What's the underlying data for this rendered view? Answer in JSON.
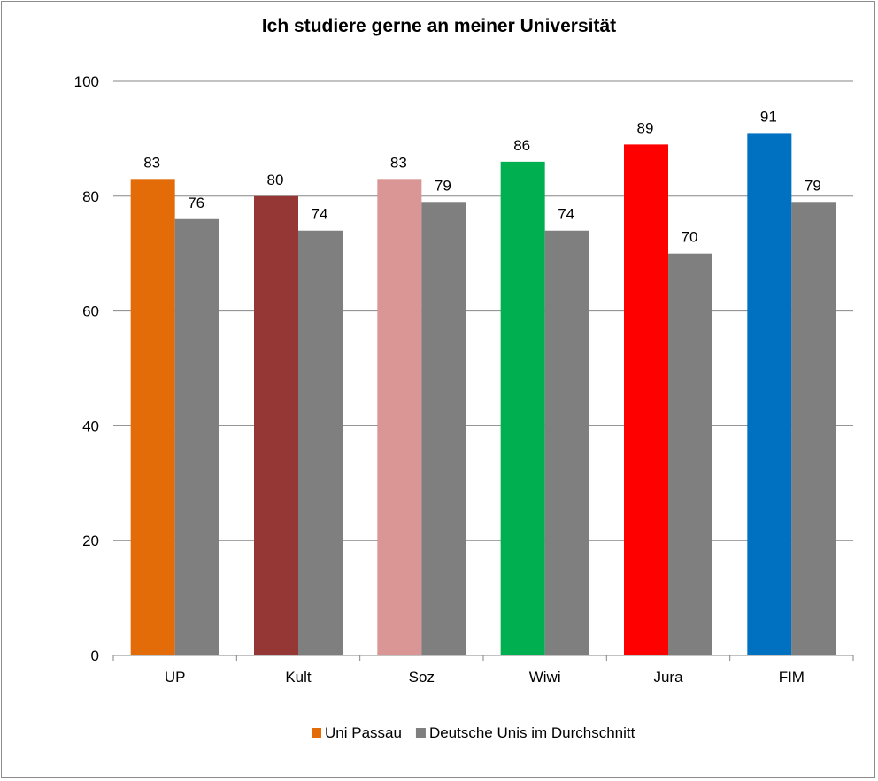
{
  "chart_data": {
    "type": "bar",
    "title": "Ich studiere gerne an meiner Universität",
    "xlabel": "",
    "ylabel": "",
    "categories": [
      "UP",
      "Kult",
      "Soz",
      "Wiwi",
      "Jura",
      "FIM"
    ],
    "series": [
      {
        "name": "Uni Passau",
        "values": [
          83,
          80,
          83,
          86,
          89,
          91
        ],
        "colors": [
          "#e36c09",
          "#953735",
          "#d99694",
          "#00b050",
          "#ff0000",
          "#0070c0"
        ],
        "legend_color": "#e36c09"
      },
      {
        "name": "Deutsche Unis im Durchschnitt",
        "values": [
          76,
          74,
          79,
          74,
          70,
          79
        ],
        "colors": [
          "#7f7f7f",
          "#7f7f7f",
          "#7f7f7f",
          "#7f7f7f",
          "#7f7f7f",
          "#7f7f7f"
        ],
        "legend_color": "#7f7f7f"
      }
    ],
    "ylim": [
      0,
      100
    ],
    "yticks": [
      0,
      20,
      40,
      60,
      80,
      100
    ],
    "grid": true,
    "data_labels": true,
    "legend_position": "bottom"
  }
}
